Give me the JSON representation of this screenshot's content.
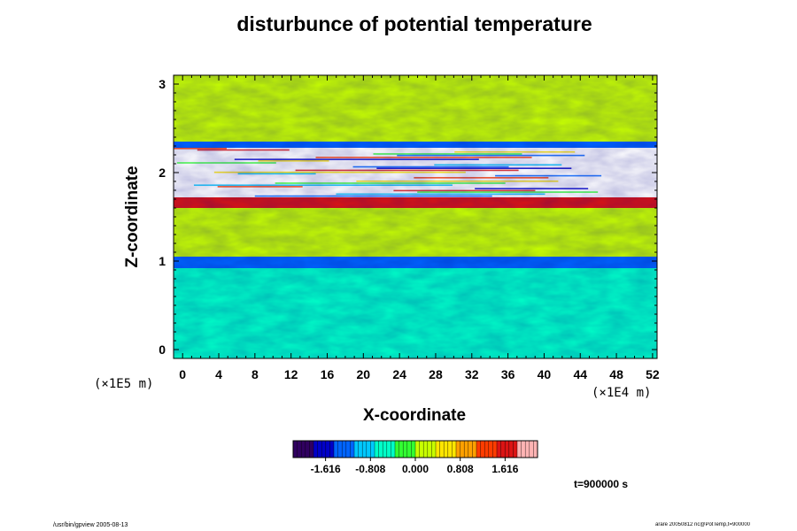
{
  "chart_data": {
    "type": "heatmap",
    "title": "disturbunce of potential temperature",
    "xlabel": "X-coordinate",
    "ylabel": "Z-coordinate",
    "x_unit": "(×1E4 m)",
    "y_unit": "(×1E5 m)",
    "xlim": [
      -1,
      52.5
    ],
    "ylim": [
      -0.1,
      3.1
    ],
    "x_ticks": [
      "0",
      "4",
      "8",
      "12",
      "16",
      "20",
      "24",
      "28",
      "32",
      "36",
      "40",
      "44",
      "48",
      "52"
    ],
    "y_ticks": [
      "0",
      "1",
      "2",
      "3"
    ],
    "x_tick_values": [
      0,
      4,
      8,
      12,
      16,
      20,
      24,
      28,
      32,
      36,
      40,
      44,
      48,
      52
    ],
    "y_tick_values": [
      0,
      1,
      2,
      3
    ],
    "colorbar": {
      "ticks": [
        "-1.616",
        "-0.808",
        "0.000",
        "0.808",
        "1.616"
      ],
      "tick_values": [
        -1.616,
        -0.808,
        0.0,
        0.808,
        1.616
      ],
      "range": [
        -2.2,
        2.2
      ],
      "colormap": [
        "#300060",
        "#0000c8",
        "#0064ff",
        "#00c8ff",
        "#00ffc8",
        "#32ff32",
        "#c8ff00",
        "#ffe600",
        "#ffa000",
        "#ff3c00",
        "#dc1414",
        "#ffb4b4"
      ]
    },
    "bands": [
      {
        "z": [
          -0.1,
          0.92
        ],
        "value": -0.7
      },
      {
        "z": [
          0.92,
          1.05
        ],
        "value": -1.3
      },
      {
        "z": [
          1.05,
          1.6
        ],
        "value": 0.15
      },
      {
        "z": [
          1.6,
          1.72
        ],
        "value": 1.7
      },
      {
        "z": [
          1.72,
          2.28
        ],
        "value": "saturated"
      },
      {
        "z": [
          2.28,
          2.35
        ],
        "value": -1.4
      },
      {
        "z": [
          2.35,
          3.1
        ],
        "value": 0.0
      }
    ],
    "grid": false,
    "legend": "colorbar-bottom"
  },
  "labels": {
    "time": "t=900000 s",
    "footer_left": "/usr/bin/gpview 2005-08-13",
    "footer_right": "arare 20050812 nc@PotTemp,t=900000"
  }
}
